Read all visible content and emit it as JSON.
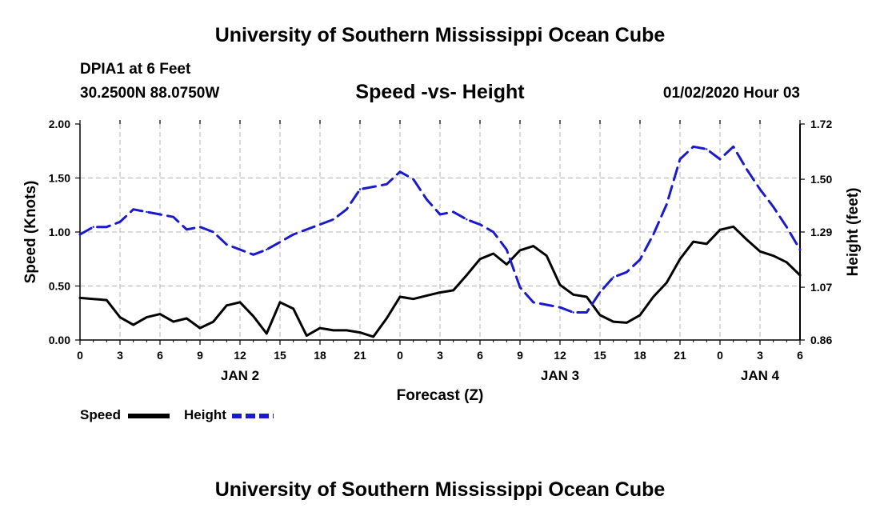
{
  "page": {
    "title_top": "University of Southern Mississippi Ocean Cube",
    "title_bottom": "University of Southern Mississippi Ocean Cube",
    "station": "DPIA1 at 6 Feet",
    "coords": "30.2500N 88.0750W",
    "date": "01/02/2020 Hour 03"
  },
  "chart_data": {
    "type": "line",
    "title": "Speed -vs- Height",
    "xlabel": "Forecast (Z)",
    "ylabel_left": "Speed (Knots)",
    "ylabel_right": "Height (feet)",
    "x_range": [
      0,
      54
    ],
    "y_left_range": [
      0,
      2.0
    ],
    "y_right_range": [
      0.86,
      1.72
    ],
    "y_left_ticks": [
      "0.00",
      "0.50",
      "1.00",
      "1.50",
      "2.00"
    ],
    "y_right_ticks": [
      "0.86",
      "1.07",
      "1.29",
      "1.50",
      "1.72"
    ],
    "x_tick_labels": [
      "0",
      "3",
      "6",
      "9",
      "12",
      "15",
      "18",
      "21",
      "0",
      "3",
      "6",
      "9",
      "12",
      "15",
      "18",
      "21",
      "0",
      "3",
      "6"
    ],
    "day_labels": [
      {
        "label": "JAN 2",
        "hour": 12
      },
      {
        "label": "JAN 3",
        "hour": 36
      },
      {
        "label": "JAN 4",
        "hour": 51
      }
    ],
    "grid": true,
    "legend": [
      {
        "name": "Speed",
        "color": "#000000",
        "style": "solid"
      },
      {
        "name": "Height",
        "color": "#1a1acc",
        "style": "dashed"
      }
    ],
    "series": [
      {
        "name": "Speed",
        "color": "#000000",
        "style": "solid",
        "axis": "left",
        "x": [
          0,
          1,
          2,
          3,
          4,
          5,
          6,
          7,
          8,
          9,
          10,
          11,
          12,
          13,
          14,
          15,
          16,
          17,
          18,
          19,
          20,
          21,
          22,
          23,
          24,
          25,
          26,
          27,
          28,
          29,
          30,
          31,
          32,
          33,
          34,
          35,
          36,
          37,
          38,
          39,
          40,
          41,
          42,
          43,
          44,
          45,
          46,
          47,
          48,
          49,
          50,
          51,
          52,
          53,
          54
        ],
        "values": [
          0.39,
          0.38,
          0.37,
          0.21,
          0.14,
          0.21,
          0.24,
          0.17,
          0.2,
          0.11,
          0.17,
          0.32,
          0.35,
          0.22,
          0.06,
          0.35,
          0.29,
          0.04,
          0.11,
          0.09,
          0.09,
          0.07,
          0.03,
          0.2,
          0.4,
          0.38,
          0.41,
          0.44,
          0.46,
          0.6,
          0.75,
          0.8,
          0.7,
          0.83,
          0.87,
          0.78,
          0.51,
          0.42,
          0.4,
          0.23,
          0.17,
          0.16,
          0.23,
          0.4,
          0.53,
          0.75,
          0.91,
          0.89,
          1.02,
          1.05,
          0.93,
          0.82,
          0.78,
          0.72,
          0.6
        ]
      },
      {
        "name": "Height",
        "color": "#1a1acc",
        "style": "dashed",
        "axis": "right",
        "x": [
          0,
          1,
          2,
          3,
          4,
          5,
          6,
          7,
          8,
          9,
          10,
          11,
          12,
          13,
          14,
          15,
          16,
          17,
          18,
          19,
          20,
          21,
          22,
          23,
          24,
          25,
          26,
          27,
          28,
          29,
          30,
          31,
          32,
          33,
          34,
          35,
          36,
          37,
          38,
          39,
          40,
          41,
          42,
          43,
          44,
          45,
          46,
          47,
          48,
          49,
          50,
          51,
          52,
          53,
          54
        ],
        "values": [
          1.28,
          1.31,
          1.31,
          1.33,
          1.38,
          1.37,
          1.36,
          1.35,
          1.3,
          1.31,
          1.29,
          1.24,
          1.22,
          1.2,
          1.22,
          1.25,
          1.28,
          1.3,
          1.32,
          1.34,
          1.38,
          1.46,
          1.47,
          1.48,
          1.53,
          1.5,
          1.42,
          1.36,
          1.37,
          1.34,
          1.32,
          1.29,
          1.22,
          1.07,
          1.01,
          1.0,
          0.99,
          0.97,
          0.97,
          1.05,
          1.11,
          1.13,
          1.18,
          1.28,
          1.4,
          1.58,
          1.63,
          1.62,
          1.58,
          1.63,
          1.54,
          1.46,
          1.39,
          1.31,
          1.22
        ]
      }
    ]
  }
}
